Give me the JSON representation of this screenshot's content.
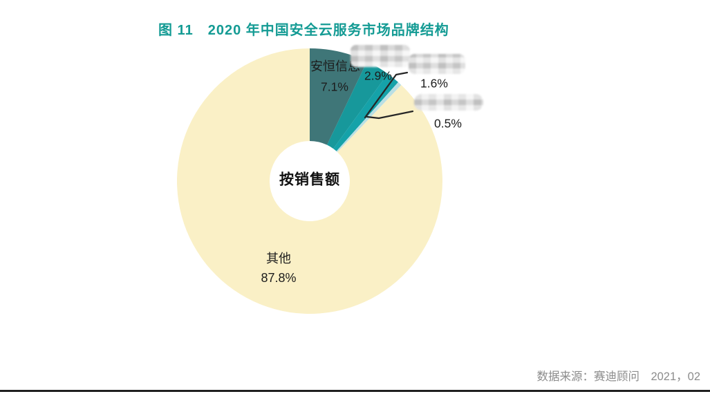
{
  "figure": {
    "title": "图 11　2020 年中国安全云服务市场品牌结构",
    "source": "数据来源：赛迪顾问　2021，02",
    "accent_color": "#149B94"
  },
  "chart_data": {
    "type": "pie",
    "donut": true,
    "title": "2020 年中国安全云服务市场品牌结构",
    "center_label": "按销售额",
    "unit": "percent",
    "legend_position": "none",
    "slices": [
      {
        "label": "安恒信息",
        "value": 7.1,
        "display": "7.1%",
        "color": "#3F7678",
        "name_redacted": false
      },
      {
        "label": "",
        "value": 2.9,
        "display": "2.9%",
        "color": "#17989B",
        "name_redacted": true
      },
      {
        "label": "",
        "value": 1.6,
        "display": "1.6%",
        "color": "#15A2A9",
        "name_redacted": true
      },
      {
        "label": "",
        "value": 0.5,
        "display": "0.5%",
        "color": "#BADFE4",
        "name_redacted": true
      },
      {
        "label": "其他",
        "value": 87.8,
        "display": "87.8%",
        "color": "#FAF0C6",
        "name_redacted": false
      }
    ]
  }
}
